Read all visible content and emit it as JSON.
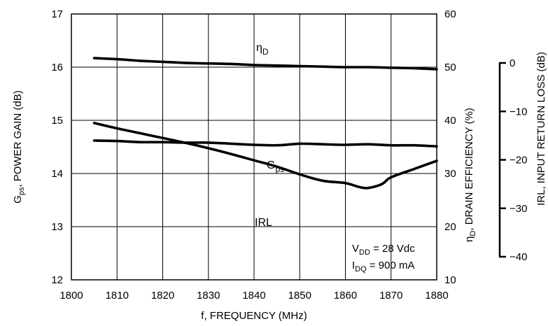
{
  "chart_data": {
    "type": "line",
    "x_axis": {
      "label": "f, FREQUENCY (MHz)",
      "range": [
        1800,
        1880
      ],
      "ticks": [
        1800,
        1810,
        1820,
        1830,
        1840,
        1850,
        1860,
        1870,
        1880
      ],
      "grid": true
    },
    "y_axes": {
      "left": {
        "label_main": "G",
        "label_sub": "ps",
        "label_rest": ", POWER GAIN (dB)",
        "range": [
          12,
          17
        ],
        "ticks": [
          12,
          13,
          14,
          15,
          16,
          17
        ]
      },
      "right": {
        "label_main": "η",
        "label_sub": "D",
        "label_rest": ", DRAIN EFFICIENCY (%)",
        "range": [
          10,
          60
        ],
        "ticks": [
          10,
          20,
          30,
          40,
          50,
          60
        ]
      },
      "right_outer": {
        "label": "IRL, INPUT RETURN LOSS (dB)",
        "range": [
          -40,
          0
        ],
        "ticks": [
          0,
          -10,
          -20,
          -30,
          -40
        ],
        "tick_labels": [
          "0",
          "−10",
          "−20",
          "−30",
          "−40"
        ]
      }
    },
    "series": [
      {
        "name_main": "η",
        "name_sub": "D",
        "axis": "right",
        "x": [
          1805,
          1810,
          1815,
          1820,
          1825,
          1830,
          1835,
          1840,
          1845,
          1850,
          1855,
          1860,
          1865,
          1870,
          1875,
          1880
        ],
        "y": [
          51.7,
          51.5,
          51.2,
          51.0,
          50.8,
          50.7,
          50.6,
          50.4,
          50.3,
          50.2,
          50.1,
          50.0,
          50.0,
          49.9,
          49.8,
          49.6
        ]
      },
      {
        "name_main": "G",
        "name_sub": "ps",
        "axis": "left",
        "x": [
          1805,
          1810,
          1815,
          1820,
          1825,
          1830,
          1835,
          1840,
          1845,
          1850,
          1855,
          1860,
          1865,
          1870,
          1875,
          1880
        ],
        "y": [
          14.62,
          14.61,
          14.59,
          14.59,
          14.58,
          14.58,
          14.56,
          14.54,
          14.53,
          14.56,
          14.55,
          14.54,
          14.55,
          14.53,
          14.53,
          14.51
        ]
      },
      {
        "name_main": "IRL",
        "name_sub": "",
        "axis": "right_outer",
        "x": [
          1805,
          1810,
          1815,
          1820,
          1825,
          1830,
          1835,
          1840,
          1845,
          1850,
          1855,
          1860,
          1863,
          1865,
          1868,
          1870,
          1875,
          1880
        ],
        "y": [
          -12.4,
          -13.5,
          -14.5,
          -15.5,
          -16.5,
          -17.6,
          -18.8,
          -20.1,
          -21.4,
          -23.0,
          -24.3,
          -24.8,
          -25.6,
          -25.8,
          -25.0,
          -23.6,
          -21.9,
          -20.2
        ]
      }
    ],
    "annotation": {
      "vdd_main": "V",
      "vdd_sub": "DD",
      "vdd_rest": " = 28 Vdc",
      "idq_main": "I",
      "idq_sub": "DQ",
      "idq_rest": " = 900 mA"
    },
    "grid": true,
    "legend": "none"
  }
}
